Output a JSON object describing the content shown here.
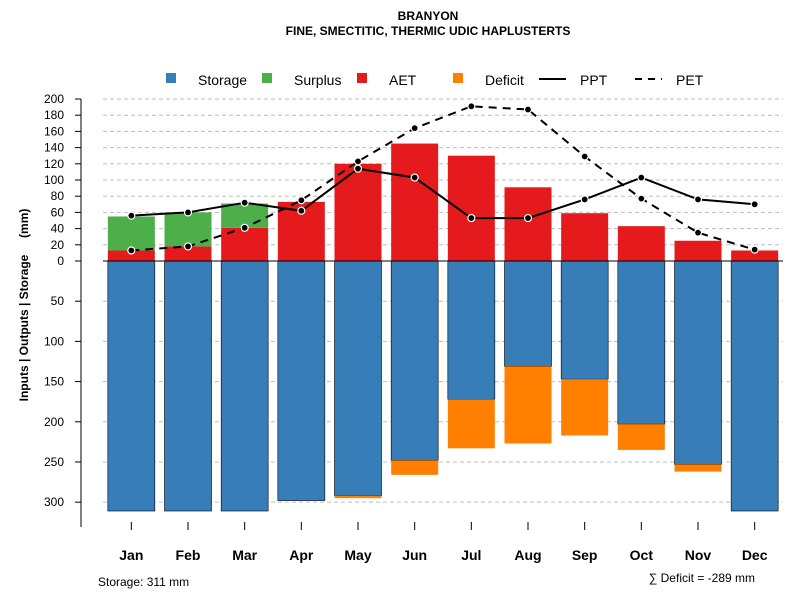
{
  "chart_data": {
    "type": "bar",
    "title": "BRANYON",
    "subtitle": "FINE, SMECTITIC, THERMIC UDIC HAPLUSTERTS",
    "ylabel": "Inputs | Outputs | Storage     (mm)",
    "categories": [
      "Jan",
      "Feb",
      "Mar",
      "Apr",
      "May",
      "Jun",
      "Jul",
      "Aug",
      "Sep",
      "Oct",
      "Nov",
      "Dec"
    ],
    "upper_ylim": [
      0,
      200
    ],
    "upper_ticks": [
      0,
      20,
      40,
      60,
      80,
      100,
      120,
      140,
      160,
      180,
      200
    ],
    "lower_ylim": [
      0,
      311
    ],
    "lower_ticks": [
      50,
      100,
      150,
      200,
      250,
      300
    ],
    "series": [
      {
        "name": "Storage",
        "color": "#377EB8",
        "values": [
          311,
          311,
          311,
          298,
          292,
          248,
          172,
          131,
          147,
          203,
          253,
          311
        ]
      },
      {
        "name": "Surplus",
        "color": "#4DAF4A",
        "values": [
          42,
          42,
          30,
          0,
          0,
          0,
          0,
          0,
          0,
          0,
          0,
          0
        ]
      },
      {
        "name": "AET",
        "color": "#E41A1C",
        "values": [
          13,
          18,
          41,
          73,
          120,
          145,
          130,
          91,
          59,
          43,
          25,
          13
        ]
      },
      {
        "name": "Deficit",
        "color": "#FF7F00",
        "values": [
          0,
          0,
          0,
          0,
          3,
          18,
          61,
          96,
          70,
          32,
          9,
          0
        ]
      },
      {
        "name": "PPT",
        "color": "#000000",
        "style": "solid",
        "values": [
          56,
          60,
          72,
          62,
          114,
          103,
          53,
          53,
          76,
          103,
          76,
          70
        ]
      },
      {
        "name": "PET",
        "color": "#000000",
        "style": "dashed",
        "values": [
          13,
          18,
          41,
          75,
          123,
          164,
          191,
          187,
          129,
          77,
          35,
          14
        ]
      }
    ],
    "storage_note": "Storage: 311 mm",
    "deficit_note": "∑ Deficit = -289 mm",
    "legend_position": "top"
  }
}
